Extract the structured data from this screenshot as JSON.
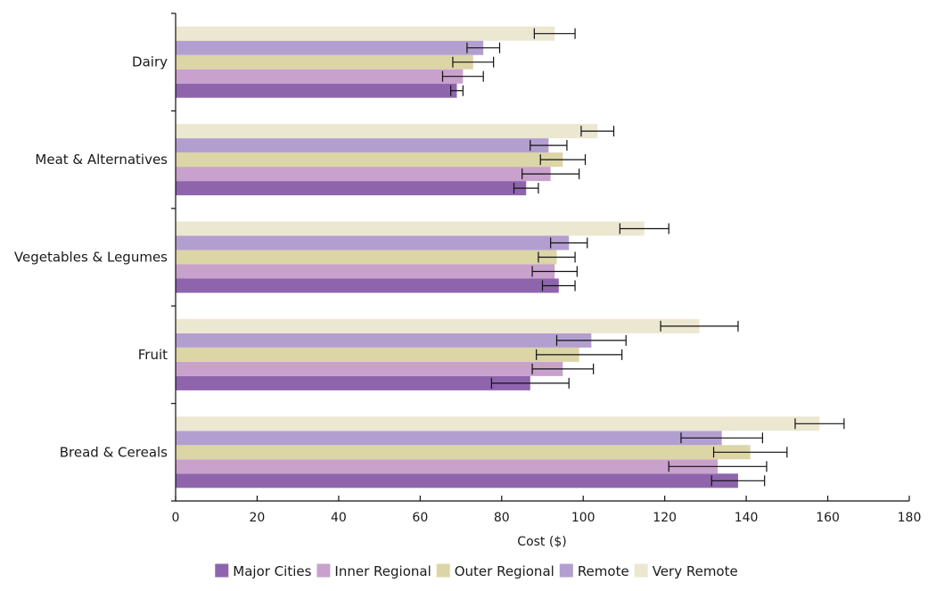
{
  "chart_data": {
    "type": "bar",
    "orientation": "horizontal",
    "title": "",
    "xlabel": "Cost ($)",
    "ylabel": "",
    "xlim": [
      0,
      180
    ],
    "xticks": [
      0,
      20,
      40,
      60,
      80,
      100,
      120,
      140,
      160,
      180
    ],
    "grid": false,
    "legend_position": "bottom",
    "categories": [
      "Dairy",
      "Meat & Alternatives",
      "Vegetables & Legumes",
      "Fruit",
      "Bread & Cereals"
    ],
    "series": [
      {
        "name": "Major Cities",
        "color": "#8e65ad",
        "values": [
          69,
          86,
          94,
          87,
          138
        ],
        "error": [
          1.5,
          3,
          4,
          9.5,
          6.5
        ]
      },
      {
        "name": "Inner Regional",
        "color": "#c9a1cd",
        "values": [
          70.5,
          92,
          93,
          95,
          133
        ],
        "error": [
          5,
          7,
          5.5,
          7.5,
          12
        ]
      },
      {
        "name": "Outer Regional",
        "color": "#dcd5a6",
        "values": [
          73,
          95,
          93.5,
          99,
          141
        ],
        "error": [
          5,
          5.5,
          4.5,
          10.5,
          9
        ]
      },
      {
        "name": "Remote",
        "color": "#b39fcf",
        "values": [
          75.5,
          91.5,
          96.5,
          102,
          134
        ],
        "error": [
          4,
          4.5,
          4.5,
          8.5,
          10
        ]
      },
      {
        "name": "Very Remote",
        "color": "#ece7d1",
        "values": [
          93,
          103.5,
          115,
          128.5,
          158
        ],
        "error": [
          5,
          4,
          6,
          9.5,
          6
        ]
      }
    ]
  }
}
